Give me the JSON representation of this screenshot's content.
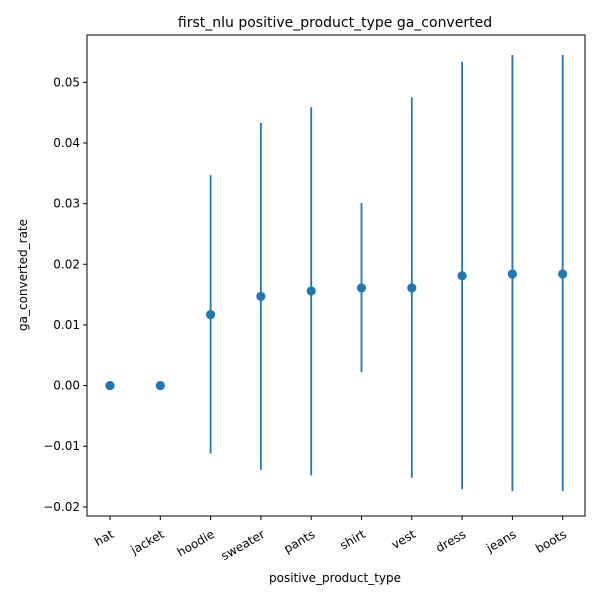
{
  "chart_data": {
    "type": "scatter",
    "title": "first_nlu positive_product_type ga_converted",
    "xlabel": "positive_product_type",
    "ylabel": "ga_converted_rate",
    "categories": [
      "hat",
      "jacket",
      "hoodie",
      "sweater",
      "pants",
      "shirt",
      "vest",
      "dress",
      "jeans",
      "boots"
    ],
    "values": [
      0.0,
      0.0,
      0.0117,
      0.0147,
      0.0156,
      0.0161,
      0.0161,
      0.0181,
      0.0184,
      0.0184
    ],
    "error_low": [
      null,
      null,
      -0.0112,
      -0.0139,
      -0.0148,
      0.0022,
      -0.0152,
      -0.0171,
      -0.0174,
      -0.0174
    ],
    "error_high": [
      null,
      null,
      0.0347,
      0.0433,
      0.0459,
      0.0301,
      0.0475,
      0.0534,
      0.0545,
      0.0545
    ],
    "ylim": [
      -0.0215,
      0.0578
    ],
    "yticks": [
      -0.02,
      -0.01,
      0.0,
      0.01,
      0.02,
      0.03,
      0.04,
      0.05
    ],
    "ytick_labels": [
      "−0.02",
      "−0.01",
      "0.00",
      "0.01",
      "0.02",
      "0.03",
      "0.04",
      "0.05"
    ],
    "grid": false,
    "color": "#1f77b4"
  }
}
